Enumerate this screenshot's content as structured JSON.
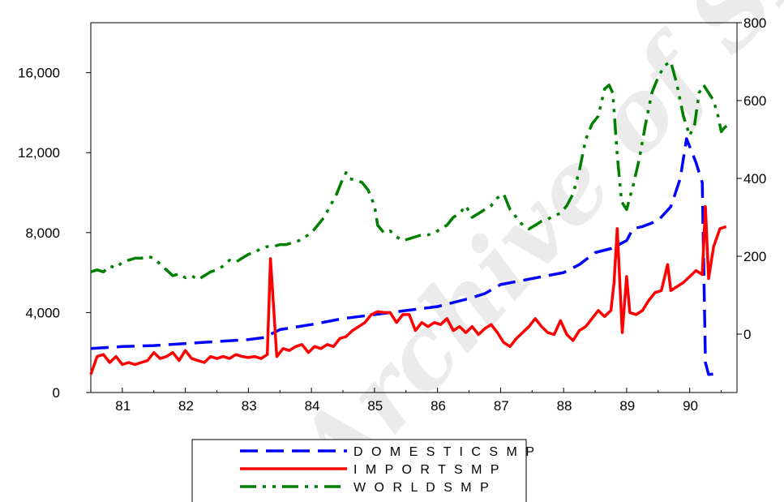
{
  "watermark": "Archive of SID",
  "chart_data": {
    "type": "line",
    "x_ticks": [
      "81",
      "82",
      "83",
      "84",
      "85",
      "86",
      "87",
      "88",
      "89",
      "90"
    ],
    "y_left": {
      "ticks": [
        0,
        4000,
        8000,
        12000,
        16000
      ],
      "tick_labels": [
        "0",
        "4,000",
        "8,000",
        "12,000",
        "16,000"
      ],
      "range": [
        0,
        18500
      ]
    },
    "y_right": {
      "ticks": [
        0,
        200,
        400,
        600,
        800
      ],
      "tick_labels": [
        "0",
        "200",
        "400",
        "600",
        "800"
      ],
      "range": [
        -150,
        800
      ]
    },
    "x_range": [
      1980.5,
      1990.75
    ],
    "series": [
      {
        "name": "DOMESTICSMP",
        "color": "#0000ff",
        "dash": "long-dash",
        "axis": "left",
        "points": [
          [
            1980.5,
            2200
          ],
          [
            1981.0,
            2300
          ],
          [
            1981.5,
            2350
          ],
          [
            1982.0,
            2450
          ],
          [
            1982.5,
            2550
          ],
          [
            1983.0,
            2650
          ],
          [
            1983.25,
            2750
          ],
          [
            1983.5,
            3150
          ],
          [
            1984.0,
            3400
          ],
          [
            1984.5,
            3700
          ],
          [
            1985.0,
            3900
          ],
          [
            1985.5,
            4100
          ],
          [
            1986.0,
            4300
          ],
          [
            1986.5,
            4700
          ],
          [
            1986.75,
            4950
          ],
          [
            1987.0,
            5400
          ],
          [
            1987.5,
            5700
          ],
          [
            1988.0,
            6000
          ],
          [
            1988.25,
            6400
          ],
          [
            1988.5,
            7000
          ],
          [
            1988.75,
            7200
          ],
          [
            1989.0,
            7600
          ],
          [
            1989.1,
            8200
          ],
          [
            1989.25,
            8300
          ],
          [
            1989.5,
            8600
          ],
          [
            1989.7,
            9300
          ],
          [
            1989.85,
            10700
          ],
          [
            1989.95,
            12700
          ],
          [
            1990.1,
            11500
          ],
          [
            1990.2,
            10500
          ],
          [
            1990.25,
            1500
          ],
          [
            1990.3,
            900
          ],
          [
            1990.45,
            950
          ]
        ]
      },
      {
        "name": "IMPORTSMP",
        "color": "#ff0000",
        "dash": "solid",
        "axis": "left",
        "points": [
          [
            1980.5,
            900
          ],
          [
            1980.6,
            1800
          ],
          [
            1980.7,
            1900
          ],
          [
            1980.8,
            1500
          ],
          [
            1980.9,
            1800
          ],
          [
            1981.0,
            1400
          ],
          [
            1981.1,
            1500
          ],
          [
            1981.2,
            1400
          ],
          [
            1981.3,
            1500
          ],
          [
            1981.4,
            1600
          ],
          [
            1981.5,
            2000
          ],
          [
            1981.6,
            1700
          ],
          [
            1981.7,
            1800
          ],
          [
            1981.8,
            2000
          ],
          [
            1981.9,
            1600
          ],
          [
            1982.0,
            2100
          ],
          [
            1982.1,
            1700
          ],
          [
            1982.2,
            1600
          ],
          [
            1982.3,
            1500
          ],
          [
            1982.4,
            1800
          ],
          [
            1982.5,
            1700
          ],
          [
            1982.6,
            1800
          ],
          [
            1982.7,
            1700
          ],
          [
            1982.8,
            1900
          ],
          [
            1982.9,
            1800
          ],
          [
            1983.0,
            1750
          ],
          [
            1983.1,
            1800
          ],
          [
            1983.2,
            1700
          ],
          [
            1983.3,
            1900
          ],
          [
            1983.35,
            6700
          ],
          [
            1983.45,
            1800
          ],
          [
            1983.55,
            2200
          ],
          [
            1983.65,
            2100
          ],
          [
            1983.75,
            2300
          ],
          [
            1983.85,
            2400
          ],
          [
            1983.95,
            2000
          ],
          [
            1984.05,
            2300
          ],
          [
            1984.15,
            2200
          ],
          [
            1984.25,
            2400
          ],
          [
            1984.35,
            2300
          ],
          [
            1984.45,
            2700
          ],
          [
            1984.55,
            2800
          ],
          [
            1984.65,
            3100
          ],
          [
            1984.75,
            3300
          ],
          [
            1984.85,
            3500
          ],
          [
            1984.95,
            3900
          ],
          [
            1985.05,
            4050
          ],
          [
            1985.15,
            4000
          ],
          [
            1985.25,
            4000
          ],
          [
            1985.35,
            3500
          ],
          [
            1985.45,
            3900
          ],
          [
            1985.55,
            3900
          ],
          [
            1985.65,
            3100
          ],
          [
            1985.75,
            3500
          ],
          [
            1985.85,
            3300
          ],
          [
            1985.95,
            3500
          ],
          [
            1986.05,
            3400
          ],
          [
            1986.15,
            3700
          ],
          [
            1986.25,
            3100
          ],
          [
            1986.35,
            3300
          ],
          [
            1986.45,
            3000
          ],
          [
            1986.55,
            3300
          ],
          [
            1986.65,
            2900
          ],
          [
            1986.75,
            3200
          ],
          [
            1986.85,
            3400
          ],
          [
            1986.95,
            3000
          ],
          [
            1987.05,
            2500
          ],
          [
            1987.15,
            2300
          ],
          [
            1987.25,
            2700
          ],
          [
            1987.35,
            3000
          ],
          [
            1987.45,
            3300
          ],
          [
            1987.55,
            3700
          ],
          [
            1987.65,
            3300
          ],
          [
            1987.75,
            3000
          ],
          [
            1987.85,
            2900
          ],
          [
            1987.95,
            3600
          ],
          [
            1988.05,
            2900
          ],
          [
            1988.15,
            2600
          ],
          [
            1988.25,
            3100
          ],
          [
            1988.35,
            3300
          ],
          [
            1988.45,
            3700
          ],
          [
            1988.55,
            4100
          ],
          [
            1988.65,
            3800
          ],
          [
            1988.75,
            4100
          ],
          [
            1988.8,
            5500
          ],
          [
            1988.85,
            8200
          ],
          [
            1988.93,
            3000
          ],
          [
            1989.0,
            5800
          ],
          [
            1989.05,
            4000
          ],
          [
            1989.15,
            3900
          ],
          [
            1989.25,
            4100
          ],
          [
            1989.35,
            4600
          ],
          [
            1989.45,
            5000
          ],
          [
            1989.55,
            5100
          ],
          [
            1989.65,
            6400
          ],
          [
            1989.7,
            5100
          ],
          [
            1989.8,
            5300
          ],
          [
            1989.9,
            5500
          ],
          [
            1990.0,
            5800
          ],
          [
            1990.1,
            6100
          ],
          [
            1990.2,
            5900
          ],
          [
            1990.25,
            9300
          ],
          [
            1990.3,
            5700
          ],
          [
            1990.38,
            7300
          ],
          [
            1990.48,
            8200
          ],
          [
            1990.58,
            8300
          ]
        ]
      },
      {
        "name": "WORLDSMP",
        "color": "#008000",
        "dash": "dash-dot-dot",
        "axis": "right",
        "points": [
          [
            1980.5,
            160
          ],
          [
            1980.6,
            165
          ],
          [
            1980.7,
            160
          ],
          [
            1980.8,
            175
          ],
          [
            1980.9,
            170
          ],
          [
            1981.0,
            185
          ],
          [
            1981.1,
            190
          ],
          [
            1981.2,
            195
          ],
          [
            1981.3,
            195
          ],
          [
            1981.4,
            200
          ],
          [
            1981.5,
            195
          ],
          [
            1981.6,
            180
          ],
          [
            1981.7,
            165
          ],
          [
            1981.8,
            150
          ],
          [
            1981.9,
            155
          ],
          [
            1982.0,
            145
          ],
          [
            1982.1,
            150
          ],
          [
            1982.2,
            140
          ],
          [
            1982.3,
            150
          ],
          [
            1982.4,
            160
          ],
          [
            1982.5,
            165
          ],
          [
            1982.6,
            175
          ],
          [
            1982.7,
            190
          ],
          [
            1982.8,
            185
          ],
          [
            1982.9,
            195
          ],
          [
            1983.0,
            205
          ],
          [
            1983.1,
            210
          ],
          [
            1983.2,
            220
          ],
          [
            1983.3,
            225
          ],
          [
            1983.4,
            225
          ],
          [
            1983.5,
            230
          ],
          [
            1983.6,
            230
          ],
          [
            1983.7,
            235
          ],
          [
            1983.8,
            240
          ],
          [
            1983.9,
            250
          ],
          [
            1984.0,
            260
          ],
          [
            1984.1,
            280
          ],
          [
            1984.2,
            300
          ],
          [
            1984.3,
            330
          ],
          [
            1984.4,
            360
          ],
          [
            1984.5,
            400
          ],
          [
            1984.55,
            415
          ],
          [
            1984.6,
            400
          ],
          [
            1984.7,
            395
          ],
          [
            1984.8,
            390
          ],
          [
            1984.9,
            370
          ],
          [
            1985.0,
            330
          ],
          [
            1985.05,
            280
          ],
          [
            1985.15,
            260
          ],
          [
            1985.25,
            265
          ],
          [
            1985.35,
            250
          ],
          [
            1985.45,
            240
          ],
          [
            1985.55,
            245
          ],
          [
            1985.65,
            250
          ],
          [
            1985.75,
            255
          ],
          [
            1985.85,
            255
          ],
          [
            1985.95,
            260
          ],
          [
            1986.05,
            270
          ],
          [
            1986.15,
            280
          ],
          [
            1986.25,
            300
          ],
          [
            1986.35,
            310
          ],
          [
            1986.45,
            330
          ],
          [
            1986.55,
            300
          ],
          [
            1986.65,
            310
          ],
          [
            1986.75,
            320
          ],
          [
            1986.85,
            330
          ],
          [
            1986.95,
            350
          ],
          [
            1987.05,
            360
          ],
          [
            1987.15,
            320
          ],
          [
            1987.25,
            300
          ],
          [
            1987.35,
            280
          ],
          [
            1987.45,
            270
          ],
          [
            1987.55,
            280
          ],
          [
            1987.65,
            290
          ],
          [
            1987.75,
            295
          ],
          [
            1987.85,
            305
          ],
          [
            1987.95,
            310
          ],
          [
            1988.05,
            330
          ],
          [
            1988.15,
            360
          ],
          [
            1988.25,
            420
          ],
          [
            1988.35,
            500
          ],
          [
            1988.45,
            540
          ],
          [
            1988.55,
            560
          ],
          [
            1988.65,
            630
          ],
          [
            1988.72,
            640
          ],
          [
            1988.78,
            620
          ],
          [
            1988.85,
            460
          ],
          [
            1988.92,
            340
          ],
          [
            1989.0,
            320
          ],
          [
            1989.1,
            380
          ],
          [
            1989.2,
            450
          ],
          [
            1989.3,
            540
          ],
          [
            1989.4,
            620
          ],
          [
            1989.5,
            660
          ],
          [
            1989.6,
            690
          ],
          [
            1989.7,
            700
          ],
          [
            1989.8,
            640
          ],
          [
            1989.9,
            560
          ],
          [
            1990.0,
            510
          ],
          [
            1990.08,
            540
          ],
          [
            1990.15,
            620
          ],
          [
            1990.22,
            640
          ],
          [
            1990.3,
            620
          ],
          [
            1990.38,
            600
          ],
          [
            1990.45,
            560
          ],
          [
            1990.5,
            520
          ],
          [
            1990.55,
            530
          ],
          [
            1990.62,
            540
          ]
        ]
      }
    ],
    "legend": {
      "position": "bottom-center",
      "entries": [
        "D O M E S T I C S M P",
        "I M P O R T S M P",
        "W O R L D S M P"
      ]
    },
    "grid": false
  }
}
